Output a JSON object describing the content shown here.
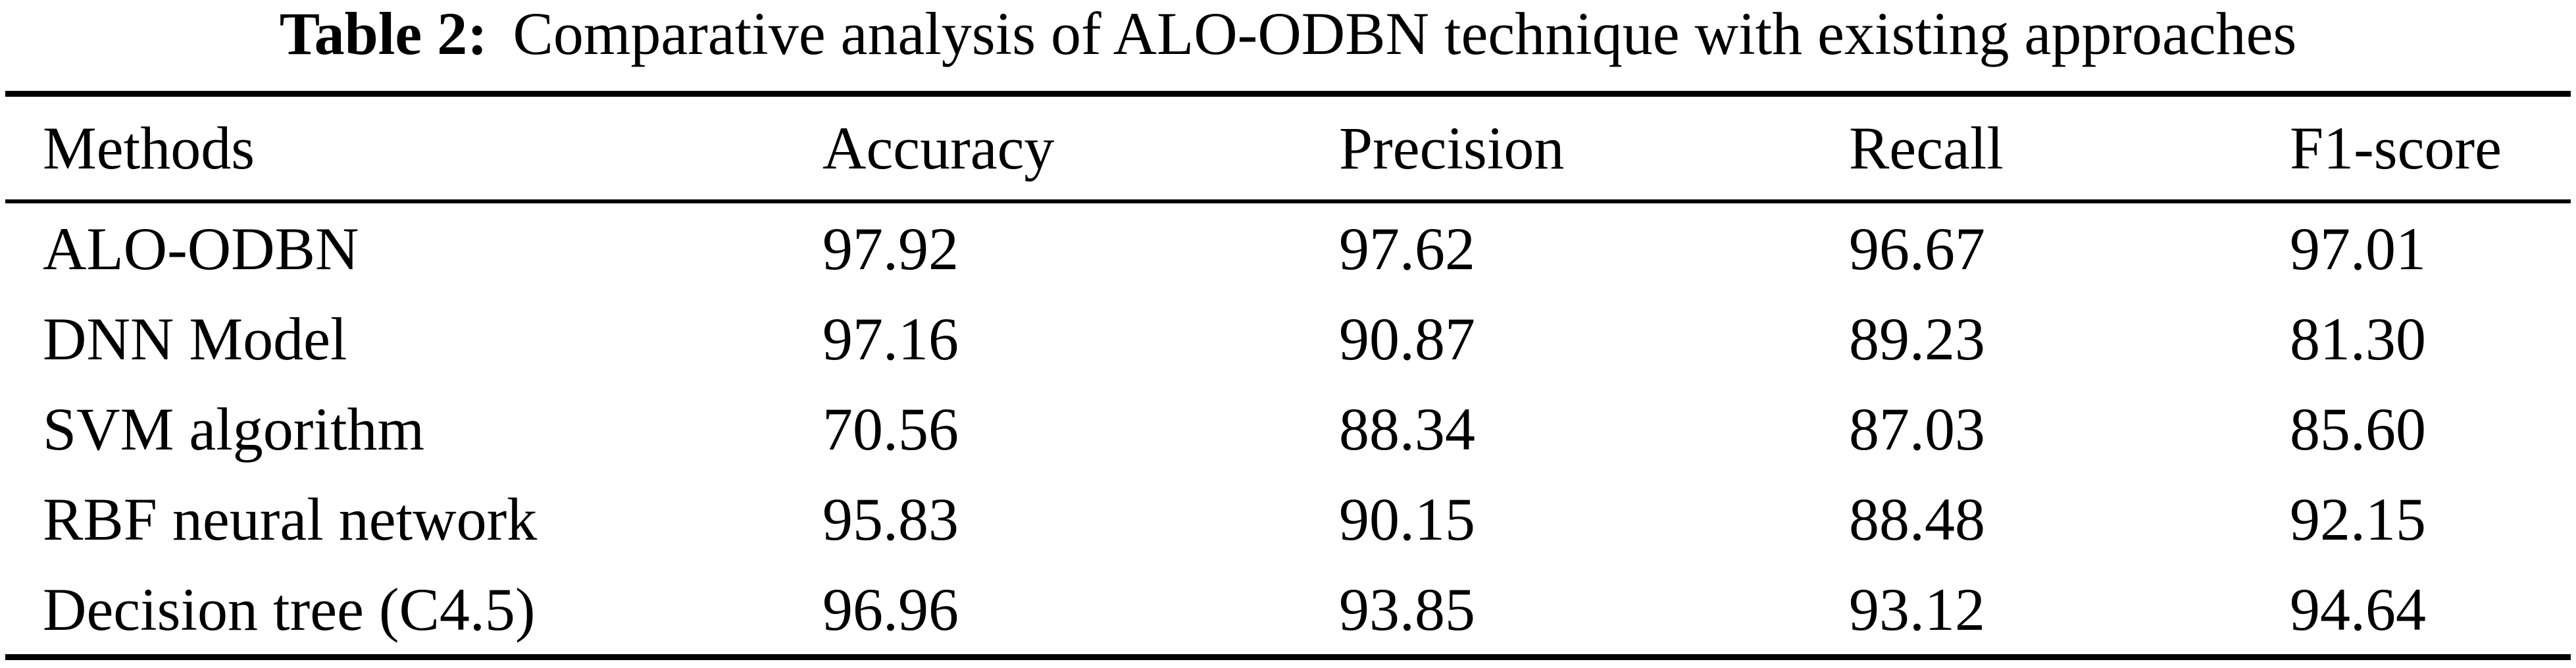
{
  "caption": {
    "label": "Table 2:",
    "text": "Comparative analysis of ALO-ODBN technique with existing approaches"
  },
  "table": {
    "columns": [
      "Methods",
      "Accuracy",
      "Precision",
      "Recall",
      "F1-score"
    ],
    "rows": [
      [
        "ALO-ODBN",
        "97.92",
        "97.62",
        "96.67",
        "97.01"
      ],
      [
        "DNN Model",
        "97.16",
        "90.87",
        "89.23",
        "81.30"
      ],
      [
        "SVM algorithm",
        "70.56",
        "88.34",
        "87.03",
        "85.60"
      ],
      [
        "RBF neural network",
        "95.83",
        "90.15",
        "88.48",
        "92.15"
      ],
      [
        "Decision tree (C4.5)",
        "96.96",
        "93.85",
        "93.12",
        "94.64"
      ]
    ]
  },
  "chart_data": {
    "type": "table",
    "title": "Table 2: Comparative analysis of ALO-ODBN technique with existing approaches",
    "columns": [
      "Methods",
      "Accuracy",
      "Precision",
      "Recall",
      "F1-score"
    ],
    "rows": [
      {
        "method": "ALO-ODBN",
        "accuracy": 97.92,
        "precision": 97.62,
        "recall": 96.67,
        "f1_score": 97.01
      },
      {
        "method": "DNN Model",
        "accuracy": 97.16,
        "precision": 90.87,
        "recall": 89.23,
        "f1_score": 81.3
      },
      {
        "method": "SVM algorithm",
        "accuracy": 70.56,
        "precision": 88.34,
        "recall": 87.03,
        "f1_score": 85.6
      },
      {
        "method": "RBF neural network",
        "accuracy": 95.83,
        "precision": 90.15,
        "recall": 88.48,
        "f1_score": 92.15
      },
      {
        "method": "Decision tree (C4.5)",
        "accuracy": 96.96,
        "precision": 93.85,
        "recall": 93.12,
        "f1_score": 94.64
      }
    ]
  },
  "colors": {
    "text": "#000000",
    "background": "#ffffff",
    "rule": "#000000"
  }
}
